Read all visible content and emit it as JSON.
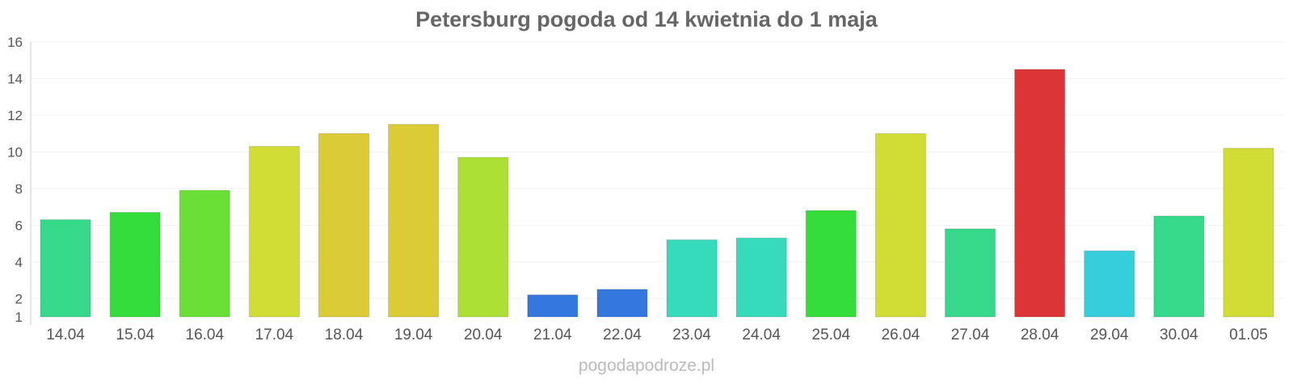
{
  "chart_data": {
    "type": "bar",
    "title": "Petersburg pogoda od 14 kwietnia do 1 maja",
    "xlabel": "",
    "ylabel": "",
    "categories": [
      "14.04",
      "15.04",
      "16.04",
      "17.04",
      "18.04",
      "19.04",
      "20.04",
      "21.04",
      "22.04",
      "23.04",
      "24.04",
      "25.04",
      "26.04",
      "27.04",
      "28.04",
      "29.04",
      "30.04",
      "01.05"
    ],
    "values": [
      6.3,
      6.7,
      7.9,
      10.3,
      11.0,
      11.5,
      9.7,
      2.2,
      2.5,
      5.2,
      5.3,
      6.8,
      11.0,
      5.8,
      14.5,
      4.6,
      6.5,
      10.2
    ],
    "colors": [
      "#36d98a",
      "#34dd3a",
      "#6adf36",
      "#d0dd34",
      "#dbcb34",
      "#dbcb34",
      "#ace034",
      "#3578dd",
      "#3578dd",
      "#35dbba",
      "#35dbba",
      "#34dd3a",
      "#d0dd34",
      "#36d98a",
      "#dc3535",
      "#35cfdb",
      "#36d98a",
      "#d0dd34"
    ],
    "ylim": [
      1,
      16
    ],
    "yticks": [
      1,
      2,
      4,
      6,
      8,
      10,
      12,
      14,
      16
    ],
    "grid": true
  },
  "watermark": "pogodapodroze.pl"
}
